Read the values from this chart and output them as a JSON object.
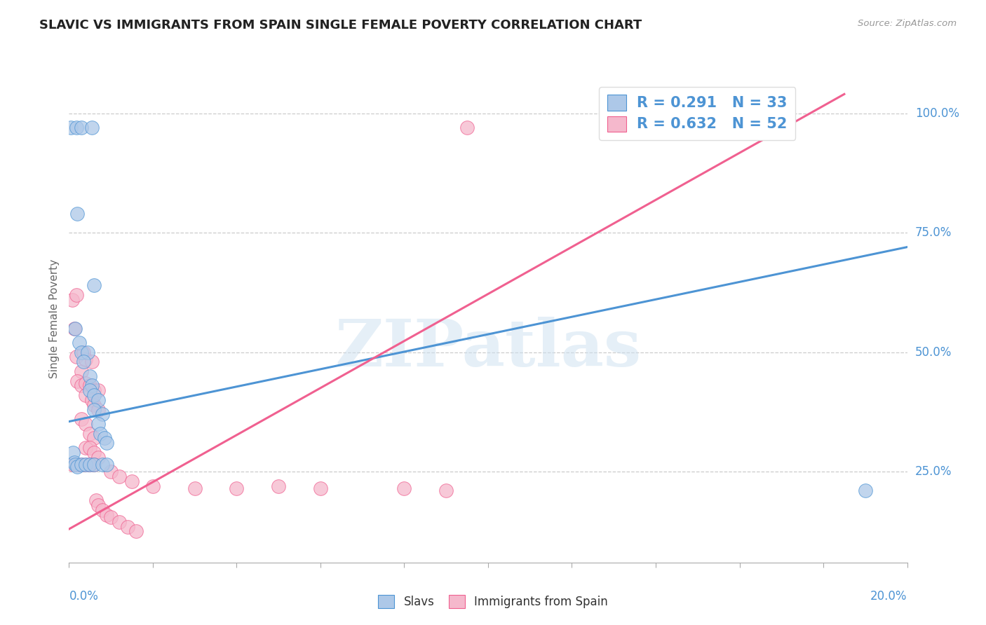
{
  "title": "SLAVIC VS IMMIGRANTS FROM SPAIN SINGLE FEMALE POVERTY CORRELATION CHART",
  "source": "Source: ZipAtlas.com",
  "ylabel": "Single Female Poverty",
  "right_yticks": [
    0.25,
    0.5,
    0.75,
    1.0
  ],
  "right_yticklabels": [
    "25.0%",
    "50.0%",
    "75.0%",
    "100.0%"
  ],
  "slavs_R": 0.291,
  "slavs_N": 33,
  "spain_R": 0.632,
  "spain_N": 52,
  "slavs_color": "#adc8e8",
  "spain_color": "#f5b8cc",
  "slavs_line_color": "#4d94d4",
  "spain_line_color": "#f06090",
  "watermark": "ZIPatlas",
  "slavs_points": [
    [
      0.0005,
      0.97
    ],
    [
      0.0018,
      0.97
    ],
    [
      0.003,
      0.97
    ],
    [
      0.0055,
      0.97
    ],
    [
      0.002,
      0.79
    ],
    [
      0.006,
      0.64
    ],
    [
      0.0015,
      0.55
    ],
    [
      0.0025,
      0.52
    ],
    [
      0.003,
      0.5
    ],
    [
      0.0045,
      0.5
    ],
    [
      0.0035,
      0.48
    ],
    [
      0.005,
      0.45
    ],
    [
      0.0055,
      0.43
    ],
    [
      0.005,
      0.42
    ],
    [
      0.006,
      0.41
    ],
    [
      0.007,
      0.4
    ],
    [
      0.006,
      0.38
    ],
    [
      0.008,
      0.37
    ],
    [
      0.007,
      0.35
    ],
    [
      0.0075,
      0.33
    ],
    [
      0.0085,
      0.32
    ],
    [
      0.009,
      0.31
    ],
    [
      0.001,
      0.29
    ],
    [
      0.0012,
      0.27
    ],
    [
      0.0015,
      0.265
    ],
    [
      0.002,
      0.26
    ],
    [
      0.003,
      0.265
    ],
    [
      0.004,
      0.265
    ],
    [
      0.005,
      0.265
    ],
    [
      0.006,
      0.265
    ],
    [
      0.008,
      0.265
    ],
    [
      0.009,
      0.265
    ],
    [
      0.19,
      0.21
    ]
  ],
  "spain_points": [
    [
      0.0008,
      0.61
    ],
    [
      0.0012,
      0.55
    ],
    [
      0.0018,
      0.49
    ],
    [
      0.003,
      0.46
    ],
    [
      0.0018,
      0.62
    ],
    [
      0.0035,
      0.5
    ],
    [
      0.004,
      0.485
    ],
    [
      0.0055,
      0.48
    ],
    [
      0.002,
      0.44
    ],
    [
      0.003,
      0.43
    ],
    [
      0.004,
      0.435
    ],
    [
      0.005,
      0.43
    ],
    [
      0.006,
      0.42
    ],
    [
      0.007,
      0.42
    ],
    [
      0.004,
      0.41
    ],
    [
      0.0055,
      0.4
    ],
    [
      0.006,
      0.39
    ],
    [
      0.007,
      0.38
    ],
    [
      0.003,
      0.36
    ],
    [
      0.004,
      0.35
    ],
    [
      0.005,
      0.33
    ],
    [
      0.006,
      0.32
    ],
    [
      0.004,
      0.3
    ],
    [
      0.005,
      0.3
    ],
    [
      0.006,
      0.29
    ],
    [
      0.007,
      0.28
    ],
    [
      0.001,
      0.265
    ],
    [
      0.002,
      0.265
    ],
    [
      0.003,
      0.265
    ],
    [
      0.004,
      0.265
    ],
    [
      0.005,
      0.265
    ],
    [
      0.006,
      0.265
    ],
    [
      0.0065,
      0.19
    ],
    [
      0.007,
      0.18
    ],
    [
      0.008,
      0.17
    ],
    [
      0.009,
      0.16
    ],
    [
      0.01,
      0.155
    ],
    [
      0.012,
      0.145
    ],
    [
      0.014,
      0.135
    ],
    [
      0.016,
      0.125
    ],
    [
      0.05,
      0.22
    ],
    [
      0.09,
      0.21
    ],
    [
      0.095,
      0.97
    ],
    [
      0.17,
      1.0
    ],
    [
      0.01,
      0.25
    ],
    [
      0.012,
      0.24
    ],
    [
      0.015,
      0.23
    ],
    [
      0.02,
      0.22
    ],
    [
      0.03,
      0.215
    ],
    [
      0.04,
      0.215
    ],
    [
      0.06,
      0.215
    ],
    [
      0.08,
      0.215
    ]
  ],
  "xlim": [
    0.0,
    0.2
  ],
  "ylim": [
    0.06,
    1.08
  ],
  "slavs_line": {
    "x0": 0.0,
    "y0": 0.355,
    "x1": 0.2,
    "y1": 0.72
  },
  "spain_line": {
    "x0": 0.0,
    "y0": 0.13,
    "x1": 0.185,
    "y1": 1.04
  }
}
